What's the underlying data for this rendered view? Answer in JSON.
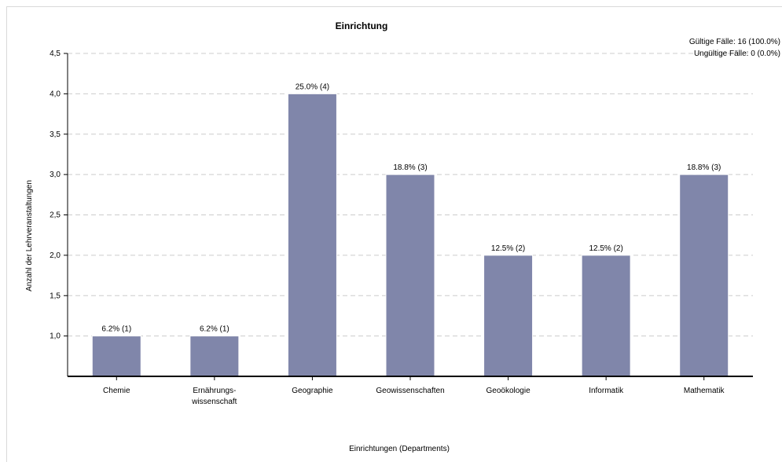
{
  "chart_data": {
    "type": "bar",
    "title": "Einrichtung",
    "xlabel": "Einrichtungen (Departments)",
    "ylabel": "Anzahl der Lehrveranstaltungen",
    "categories": [
      [
        "Chemie"
      ],
      [
        "Ernährungs-",
        "wissenschaft"
      ],
      [
        "Geographie"
      ],
      [
        "Geowissenschaften"
      ],
      [
        "Geoökologie"
      ],
      [
        "Informatik"
      ],
      [
        "Mathematik"
      ]
    ],
    "values": [
      1,
      1,
      4,
      3,
      2,
      2,
      3
    ],
    "data_labels": [
      "6.2% (1)",
      "6.2% (1)",
      "25.0% (4)",
      "18.8% (3)",
      "12.5% (2)",
      "12.5% (2)",
      "18.8% (3)"
    ],
    "ylim": [
      0.5,
      4.5
    ],
    "yticks": [
      1.0,
      1.5,
      2.0,
      2.5,
      3.0,
      3.5,
      4.0,
      4.5
    ],
    "ytick_labels": [
      "1,0",
      "1,5",
      "2,0",
      "2,5",
      "3,0",
      "3,5",
      "4,0",
      "4,5"
    ],
    "grid": true,
    "bar_color": "#8086aa",
    "info_lines": [
      "Gültige Fälle: 16 (100.0%)",
      "Ungültige Fälle: 0 (0.0%)"
    ]
  }
}
